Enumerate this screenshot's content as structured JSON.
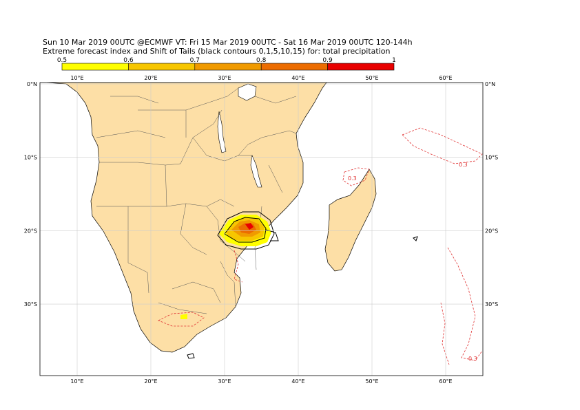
{
  "header": {
    "line1": "Sun 10 Mar 2019 00UTC @ECMWF VT: Fri 15 Mar 2019 00UTC - Sat 16 Mar 2019 00UTC  120-144h",
    "line2": "Extreme forecast index and Shift of Tails (black contours 0,1,5,10,15) for: total precipitation"
  },
  "colorbar": {
    "ticks": [
      "0.5",
      "0.6",
      "0.7",
      "0.8",
      "0.9",
      "1"
    ],
    "colors": [
      "#ffff00",
      "#f7c600",
      "#f09a00",
      "#ec6c00",
      "#e80000"
    ]
  },
  "map": {
    "land_color": "#fddfa6",
    "ocean_color": "#ffffff",
    "top_lon_labels": [
      "10°E",
      "20°E",
      "30°E",
      "40°E",
      "50°E",
      "60°E"
    ],
    "bottom_lon_labels": [
      "10°E",
      "20°E",
      "30°E",
      "40°E",
      "50°E",
      "60°E"
    ],
    "left_lat_labels": [
      "0°N",
      "10°S",
      "20°S",
      "30°S"
    ],
    "right_lat_labels": [
      "0°N",
      "10°S",
      "20°S",
      "30°S"
    ],
    "contour_label": "0.3"
  }
}
